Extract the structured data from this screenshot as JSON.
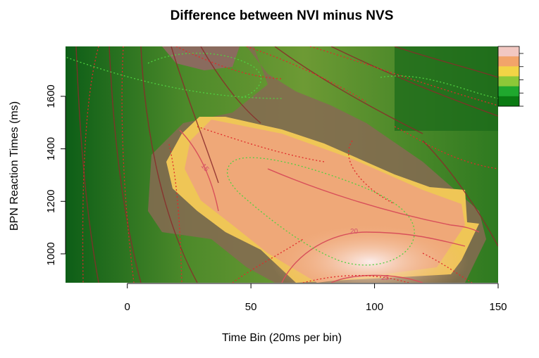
{
  "chart_data": {
    "type": "heatmap",
    "title": "Difference between NVI minus NVS",
    "xlabel": "Time Bin (20ms per bin)",
    "ylabel": "BPN Reaction Times (ms)",
    "xlim": [
      -25,
      150
    ],
    "ylim": [
      890,
      1790
    ],
    "x_ticks": [
      "0",
      "50",
      "100",
      "150"
    ],
    "y_ticks": [
      "1000",
      "1200",
      "1400",
      "1600"
    ],
    "contour_labels": [
      "15",
      "20",
      "25"
    ],
    "legend": {
      "position": "top-right",
      "colors": [
        "#f2c8c2",
        "#f2a46a",
        "#f2d446",
        "#8cc838",
        "#1fa82e",
        "#0a7a12"
      ]
    },
    "region_colors": {
      "low": "#0e6418",
      "mid": "#5a8c2a",
      "brown": "#8a6a50",
      "yellow": "#f0c850",
      "orange": "#f0a870",
      "pink": "#f6dcd8"
    }
  }
}
